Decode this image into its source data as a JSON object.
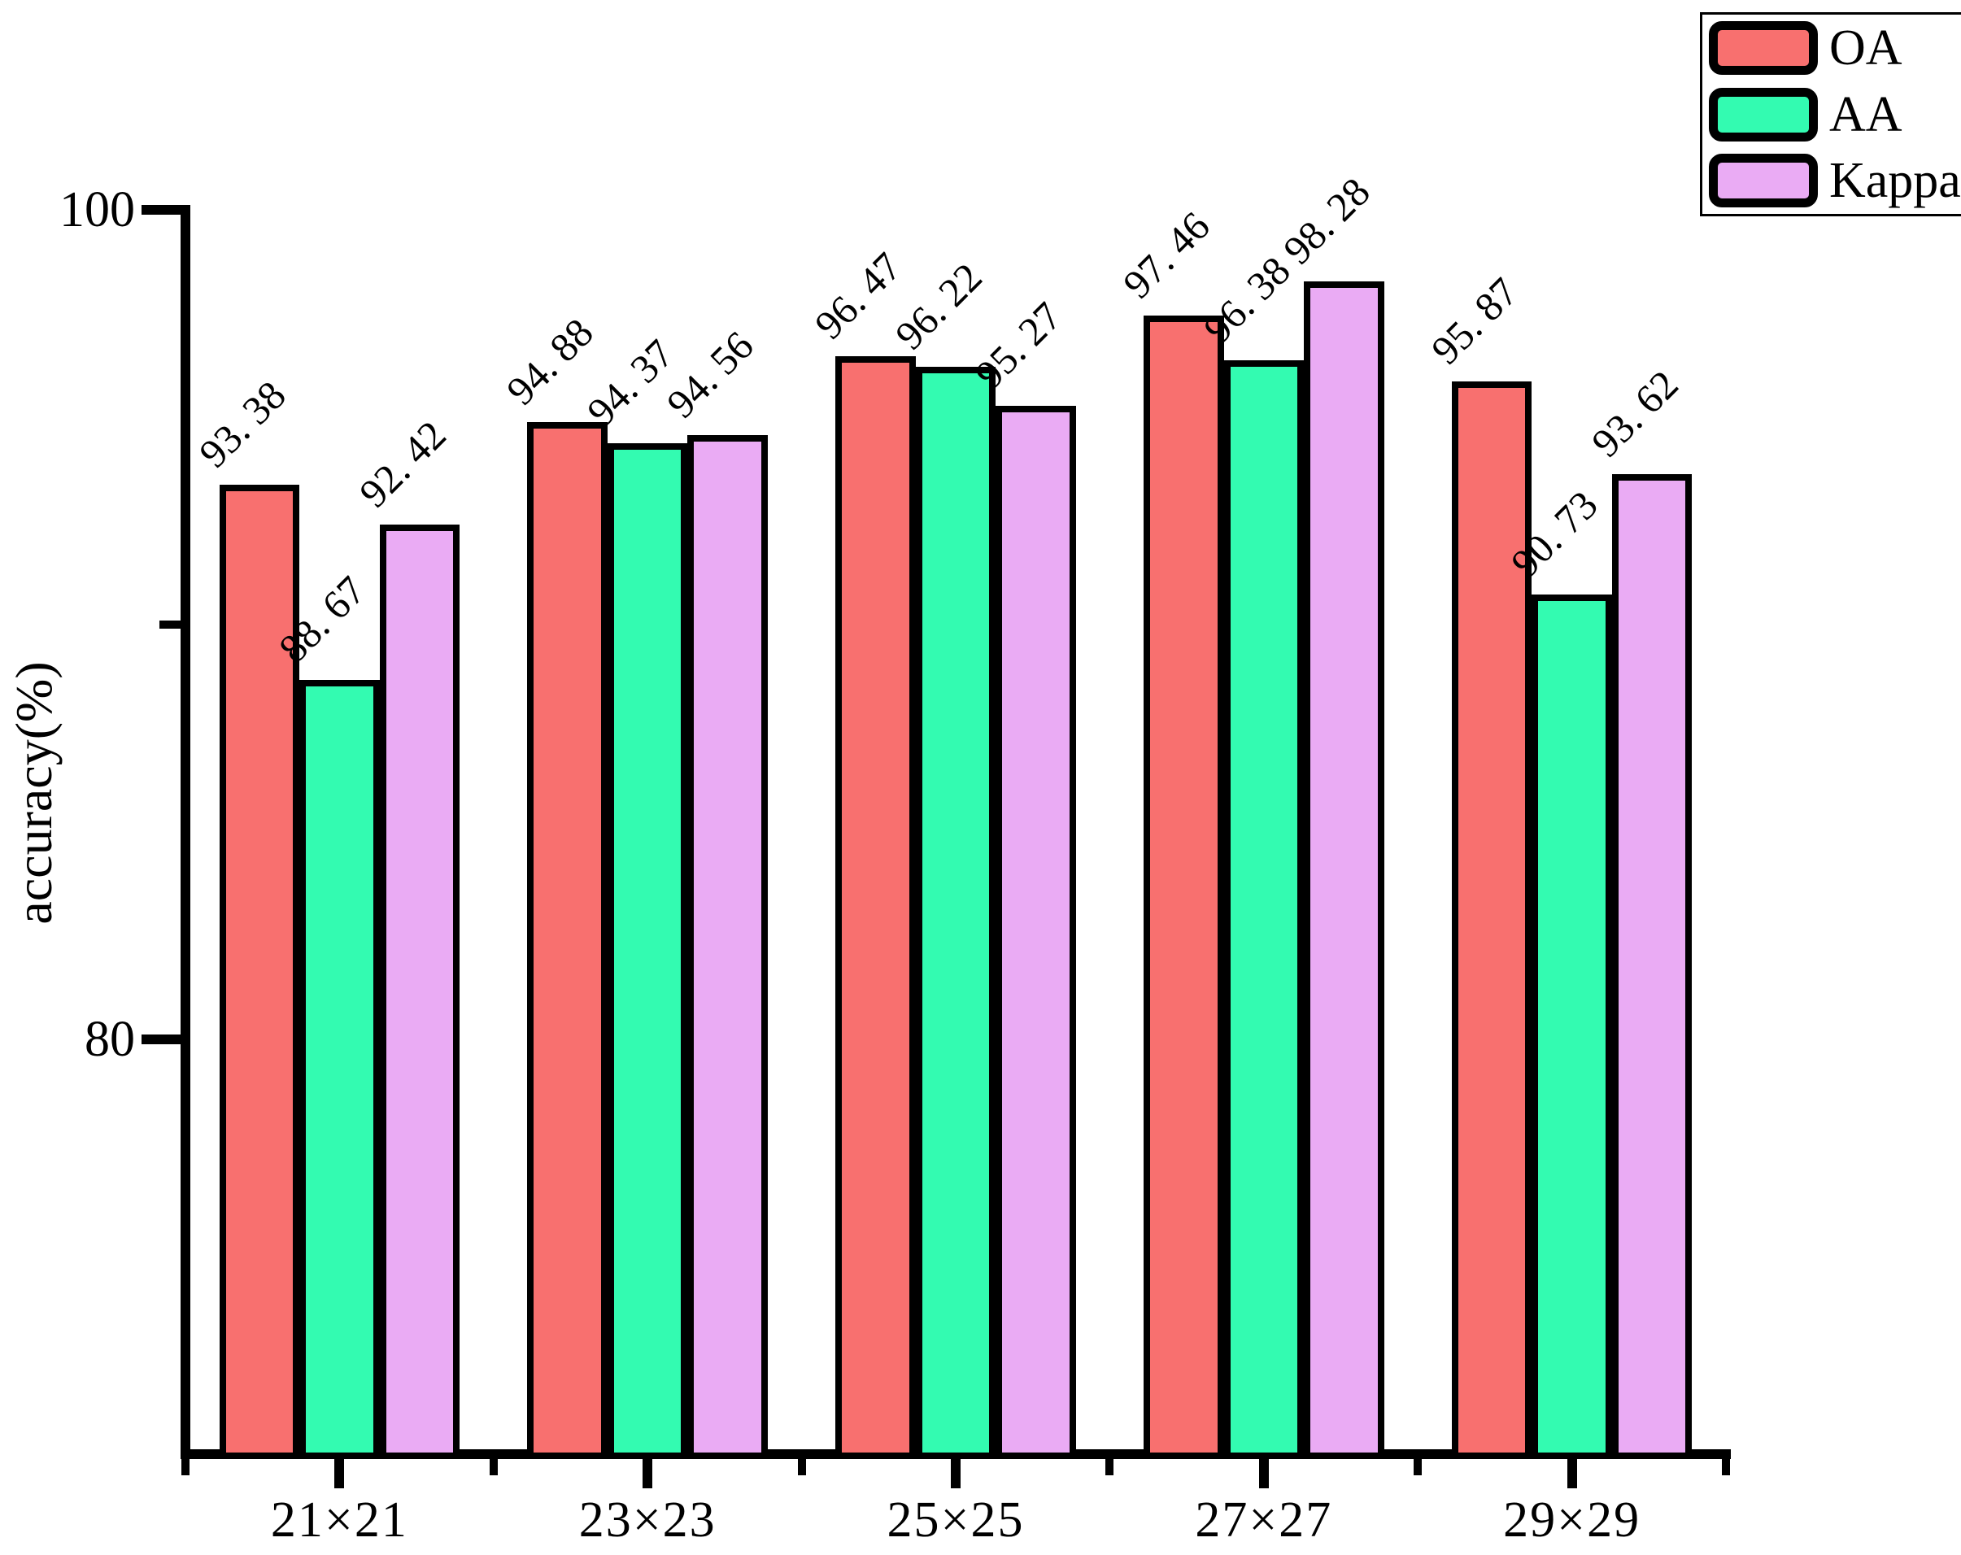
{
  "chart_data": {
    "type": "bar",
    "title": "",
    "xlabel": "",
    "ylabel": "accuracy(%)",
    "categories": [
      "21×21",
      "23×23",
      "25×25",
      "27×27",
      "29×29"
    ],
    "series": [
      {
        "name": "OA",
        "color": "#F8706F",
        "values": [
          93.38,
          94.88,
          96.47,
          97.46,
          95.87
        ],
        "labels": [
          "93. 38",
          "94. 88",
          "96. 47",
          "97. 46",
          "95. 87"
        ]
      },
      {
        "name": "AA",
        "color": "#33FBB1",
        "values": [
          88.67,
          94.37,
          96.22,
          96.38,
          90.73
        ],
        "labels": [
          "88. 67",
          "94. 37",
          "96. 22",
          "96. 38",
          "90. 73"
        ]
      },
      {
        "name": "Kappa",
        "color": "#EAABF4",
        "values": [
          92.42,
          94.56,
          95.27,
          98.28,
          93.62
        ],
        "labels": [
          "92. 42",
          "94. 56",
          "95. 27",
          "98. 28",
          "93. 62"
        ]
      }
    ],
    "ylim": [
      70,
      100
    ],
    "y_major_ticks": [
      {
        "value": 100,
        "label": "100"
      },
      {
        "value": 80,
        "label": "80"
      }
    ],
    "y_minor_ticks": [
      90
    ],
    "grid": false,
    "bar_edge_color": "#000000",
    "axis_color": "#000000",
    "legend_position": "top-right"
  }
}
